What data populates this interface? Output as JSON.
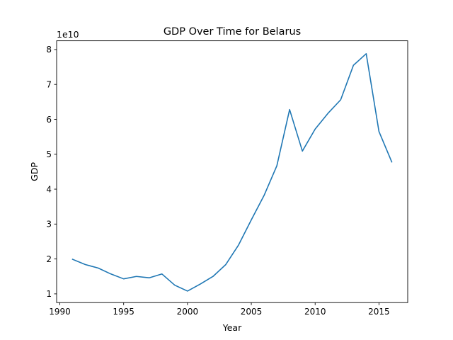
{
  "chart_data": {
    "type": "line",
    "title": "GDP Over Time for Belarus",
    "xlabel": "Year",
    "ylabel": "GDP",
    "y_offset_label": "1e10",
    "xlim": [
      1989.75,
      2017.25
    ],
    "ylim": [
      0.75,
      8.25
    ],
    "y_unit_multiplier": 10000000000,
    "x_ticks": [
      1990,
      1995,
      2000,
      2005,
      2010,
      2015
    ],
    "x_tick_labels": [
      "1990",
      "1995",
      "2000",
      "2005",
      "2010",
      "2015"
    ],
    "y_ticks": [
      1,
      2,
      3,
      4,
      5,
      6,
      7,
      8
    ],
    "y_tick_labels": [
      "1",
      "2",
      "3",
      "4",
      "5",
      "6",
      "7",
      "8"
    ],
    "grid": false,
    "legend": "none",
    "series": [
      {
        "color": "#1f77b4",
        "x": [
          1991,
          1992,
          1993,
          1994,
          1995,
          1996,
          1997,
          1998,
          1999,
          2000,
          2001,
          2002,
          2003,
          2004,
          2005,
          2006,
          2007,
          2008,
          2009,
          2010,
          2011,
          2012,
          2013,
          2014,
          2015,
          2016
        ],
        "y": [
          1.99,
          1.84,
          1.74,
          1.57,
          1.43,
          1.5,
          1.46,
          1.57,
          1.25,
          1.08,
          1.28,
          1.5,
          1.84,
          2.4,
          3.12,
          3.82,
          4.67,
          6.28,
          5.09,
          5.72,
          6.17,
          6.56,
          7.55,
          7.88,
          5.65,
          4.78
        ]
      }
    ]
  }
}
